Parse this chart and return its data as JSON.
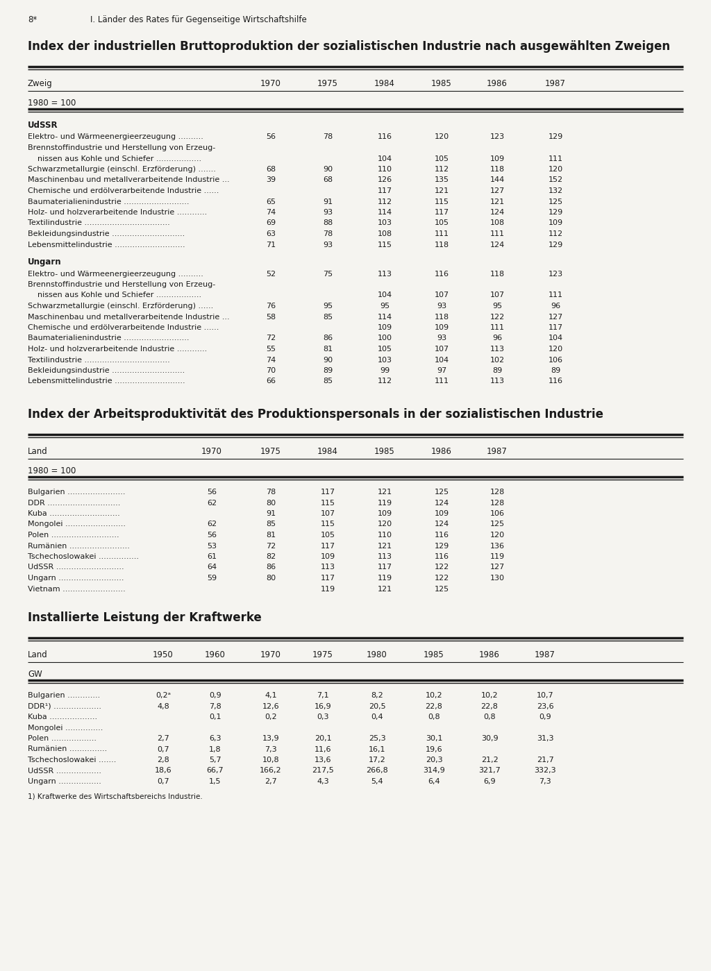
{
  "page_header_left": "8*",
  "page_header_right": "I. Länder des Rates für Gegenseitige Wirtschaftshilfe",
  "table1_title": "Index der industriellen Bruttoproduktion der sozialistischen Industrie nach ausgewählten Zweigen",
  "table1_col_header": "Zweig",
  "table1_years": [
    "1970",
    "1975",
    "1984",
    "1985",
    "1986",
    "1987"
  ],
  "table1_unit": "1980 = 100",
  "table1_sections": [
    {
      "section_name": "UdSSR",
      "rows": [
        {
          "label": "Elektro- und Wärmeenergieerzeugung ..........",
          "indent": 0,
          "values": [
            "56",
            "78",
            "116",
            "120",
            "123",
            "129"
          ]
        },
        {
          "label": "Brennstoffindustrie und Herstellung von Erzeug-",
          "indent": 0,
          "values": [
            "",
            "",
            "",
            "",
            "",
            ""
          ],
          "cont": true
        },
        {
          "label": "    nissen aus Kohle und Schiefer ..................",
          "indent": 0,
          "values": [
            "",
            "",
            "104",
            "105",
            "109",
            "111"
          ],
          "cont": false
        },
        {
          "label": "Schwarzmetallurgie (einschl. Erzförderung) .......",
          "indent": 0,
          "values": [
            "68",
            "90",
            "110",
            "112",
            "118",
            "120"
          ]
        },
        {
          "label": "Maschinenbau und metallverarbeitende Industrie ...",
          "indent": 0,
          "values": [
            "39",
            "68",
            "126",
            "135",
            "144",
            "152"
          ]
        },
        {
          "label": "Chemische und erdölverarbeitende Industrie ......",
          "indent": 0,
          "values": [
            "",
            "",
            "117",
            "121",
            "127",
            "132"
          ]
        },
        {
          "label": "Baumaterialienindustrie ..........................",
          "indent": 0,
          "values": [
            "65",
            "91",
            "112",
            "115",
            "121",
            "125"
          ]
        },
        {
          "label": "Holz- und holzverarbeitende Industrie ............",
          "indent": 0,
          "values": [
            "74",
            "93",
            "114",
            "117",
            "124",
            "129"
          ]
        },
        {
          "label": "Textilindustrie ..................................",
          "indent": 0,
          "values": [
            "69",
            "88",
            "103",
            "105",
            "108",
            "109"
          ]
        },
        {
          "label": "Bekleidungsindustrie .............................",
          "indent": 0,
          "values": [
            "63",
            "78",
            "108",
            "111",
            "111",
            "112"
          ]
        },
        {
          "label": "Lebensmittelindustrie ............................",
          "indent": 0,
          "values": [
            "71",
            "93",
            "115",
            "118",
            "124",
            "129"
          ]
        }
      ]
    },
    {
      "section_name": "Ungarn",
      "rows": [
        {
          "label": "Elektro- und Wärmeenergieerzeugung ..........",
          "indent": 0,
          "values": [
            "52",
            "75",
            "113",
            "116",
            "118",
            "123"
          ]
        },
        {
          "label": "Brennstoffindustrie und Herstellung von Erzeug-",
          "indent": 0,
          "values": [
            "",
            "",
            "",
            "",
            "",
            ""
          ],
          "cont": true
        },
        {
          "label": "    nissen aus Kohle und Schiefer ..................",
          "indent": 0,
          "values": [
            "",
            "",
            "104",
            "107",
            "107",
            "111"
          ],
          "cont": false
        },
        {
          "label": "Schwarzmetallurgie (einschl. Erzförderung) ......",
          "indent": 0,
          "values": [
            "76",
            "95",
            "95",
            "93",
            "95",
            "96"
          ]
        },
        {
          "label": "Maschinenbau und metallverarbeitende Industrie ...",
          "indent": 0,
          "values": [
            "58",
            "85",
            "114",
            "118",
            "122",
            "127"
          ]
        },
        {
          "label": "Chemische und erdölverarbeitende Industrie ......",
          "indent": 0,
          "values": [
            "",
            "",
            "109",
            "109",
            "111",
            "117"
          ]
        },
        {
          "label": "Baumaterialienindustrie ..........................",
          "indent": 0,
          "values": [
            "72",
            "86",
            "100",
            "93",
            "96",
            "104"
          ]
        },
        {
          "label": "Holz- und holzverarbeitende Industrie ............",
          "indent": 0,
          "values": [
            "55",
            "81",
            "105",
            "107",
            "113",
            "120"
          ]
        },
        {
          "label": "Textilindustrie ..................................",
          "indent": 0,
          "values": [
            "74",
            "90",
            "103",
            "104",
            "102",
            "106"
          ]
        },
        {
          "label": "Bekleidungsindustrie .............................",
          "indent": 0,
          "values": [
            "70",
            "89",
            "99",
            "97",
            "89",
            "89"
          ]
        },
        {
          "label": "Lebensmittelindustrie ............................",
          "indent": 0,
          "values": [
            "66",
            "85",
            "112",
            "111",
            "113",
            "116"
          ]
        }
      ]
    }
  ],
  "table2_title": "Index der Arbeitsproduktivität des Produktionspersonals in der sozialistischen Industrie",
  "table2_col_header": "Land",
  "table2_years": [
    "1970",
    "1975",
    "1984",
    "1985",
    "1986",
    "1987"
  ],
  "table2_unit": "1980 = 100",
  "table2_rows": [
    {
      "label": "Bulgarien .......................",
      "values": [
        "56",
        "78",
        "117",
        "121",
        "125",
        "128"
      ]
    },
    {
      "label": "DDR .............................",
      "values": [
        "62",
        "80",
        "115",
        "119",
        "124",
        "128"
      ]
    },
    {
      "label": "Kuba ............................",
      "values": [
        "",
        "91",
        "107",
        "109",
        "109",
        "106"
      ]
    },
    {
      "label": "Mongolei ........................",
      "values": [
        "62",
        "85",
        "115",
        "120",
        "124",
        "125"
      ]
    },
    {
      "label": "Polen ...........................",
      "values": [
        "56",
        "81",
        "105",
        "110",
        "116",
        "120"
      ]
    },
    {
      "label": "Rumänien ........................",
      "values": [
        "53",
        "72",
        "117",
        "121",
        "129",
        "136"
      ]
    },
    {
      "label": "Tschechoslowakei ................",
      "values": [
        "61",
        "82",
        "109",
        "113",
        "116",
        "119"
      ]
    },
    {
      "label": "UdSSR ...........................",
      "values": [
        "64",
        "86",
        "113",
        "117",
        "122",
        "127"
      ]
    },
    {
      "label": "Ungarn ..........................",
      "values": [
        "59",
        "80",
        "117",
        "119",
        "122",
        "130"
      ]
    },
    {
      "label": "Vietnam .........................",
      "values": [
        "",
        "",
        "119",
        "121",
        "125",
        ""
      ]
    }
  ],
  "table3_title": "Installierte Leistung der Kraftwerke",
  "table3_col_header": "Land",
  "table3_years": [
    "1950",
    "1960",
    "1970",
    "1975",
    "1980",
    "1985",
    "1986",
    "1987"
  ],
  "table3_unit": "GW",
  "table3_rows": [
    {
      "label": "Bulgarien .............",
      "values": [
        "0,2ᵃ",
        "0,9",
        "4,1",
        "7,1",
        "8,2",
        "10,2",
        "10,2",
        "10,7"
      ]
    },
    {
      "label": "DDR¹) ...................",
      "values": [
        "4,8",
        "7,8",
        "12,6",
        "16,9",
        "20,5",
        "22,8",
        "22,8",
        "23,6"
      ]
    },
    {
      "label": "Kuba ...................",
      "values": [
        "",
        "0,1",
        "0,2",
        "0,3",
        "0,4",
        "0,8",
        "0,8",
        "0,9"
      ]
    },
    {
      "label": "Mongolei ...............",
      "values": [
        "",
        "",
        "",
        "",
        "",
        "",
        "",
        ""
      ]
    },
    {
      "label": "Polen ..................",
      "values": [
        "2,7",
        "6,3",
        "13,9",
        "20,1",
        "25,3",
        "30,1",
        "30,9",
        "31,3"
      ]
    },
    {
      "label": "Rumänien ...............",
      "values": [
        "0,7",
        "1,8",
        "7,3",
        "11,6",
        "16,1",
        "19,6",
        "",
        ""
      ]
    },
    {
      "label": "Tschechoslowakei .......",
      "values": [
        "2,8",
        "5,7",
        "10,8",
        "13,6",
        "17,2",
        "20,3",
        "21,2",
        "21,7"
      ]
    },
    {
      "label": "UdSSR ..................",
      "values": [
        "18,6",
        "66,7",
        "166,2",
        "217,5",
        "266,8",
        "314,9",
        "321,7",
        "332,3"
      ]
    },
    {
      "label": "Ungarn .................",
      "values": [
        "0,7",
        "1,5",
        "2,7",
        "4,3",
        "5,4",
        "6,4",
        "6,9",
        "7,3"
      ]
    }
  ],
  "table3_footnote": "1) Kraftwerke des Wirtschaftsbereichs Industrie.",
  "bg_color": "#f5f4f0",
  "text_color": "#1a1a1a",
  "line_color": "#1a1a1a"
}
